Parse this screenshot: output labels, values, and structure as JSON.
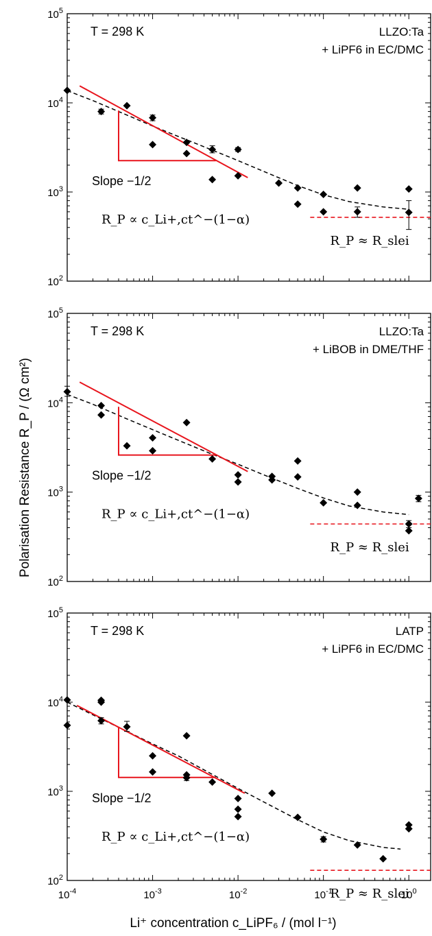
{
  "figure": {
    "ylabel": "Polarisation Resistance R_P / (Ω cm²)",
    "xlabel": "Li⁺ concentration c_LiPF₆ / (mol l⁻¹)",
    "x_ticks": [
      "10^-4",
      "10^-3",
      "10^-2",
      "10^-1",
      "10^0"
    ],
    "y_ticks": [
      "10^2",
      "10^3",
      "10^4",
      "10^5"
    ],
    "annotations": {
      "temperature": "T = 298 K",
      "slope": "Slope −1/2",
      "rp_proportional": "R_P ∝ c_Li+,ct^−(1−α)",
      "rp_approx": "R_P ≈ R_slei"
    },
    "colors": {
      "fit_line": "#000000",
      "slope_guide": "#e8141c",
      "slei_line": "#e8141c",
      "markers": "#000000"
    }
  },
  "chart_data": [
    {
      "type": "scatter",
      "title_line1": "LLZO:Ta",
      "title_line2": "+ LiPF6 in EC/DMC",
      "xscale": "log",
      "yscale": "log",
      "xlim": [
        0.0001,
        1.8
      ],
      "ylim": [
        100,
        100000
      ],
      "points": [
        [
          0.0001,
          13800
        ],
        [
          0.00025,
          8000
        ],
        [
          0.0005,
          9300
        ],
        [
          0.001,
          6800
        ],
        [
          0.001,
          3400
        ],
        [
          0.0025,
          3600
        ],
        [
          0.0025,
          2700
        ],
        [
          0.005,
          3000
        ],
        [
          0.005,
          1380
        ],
        [
          0.01,
          3000
        ],
        [
          0.01,
          1520
        ],
        [
          0.03,
          1260
        ],
        [
          0.05,
          1110
        ],
        [
          0.05,
          730
        ],
        [
          0.1,
          940
        ],
        [
          0.1,
          600
        ],
        [
          0.25,
          1110
        ],
        [
          0.25,
          600
        ],
        [
          1.0,
          1080
        ],
        [
          1.0,
          590
        ]
      ],
      "error_bars": [
        [
          0.00025,
          8000,
          7500,
          8500
        ],
        [
          0.001,
          6800,
          6300,
          7300
        ],
        [
          0.005,
          3000,
          2750,
          3300
        ],
        [
          0.01,
          3000,
          2850,
          3150
        ],
        [
          0.25,
          600,
          520,
          680
        ],
        [
          1.0,
          590,
          380,
          800
        ]
      ],
      "fit_curve": {
        "x": [
          0.0001,
          0.0002,
          0.0005,
          0.001,
          0.002,
          0.005,
          0.01,
          0.02,
          0.05,
          0.1,
          0.2,
          0.5,
          1.0
        ],
        "y": [
          13700,
          10600,
          7300,
          5500,
          4200,
          2950,
          2250,
          1700,
          1180,
          930,
          780,
          680,
          640
        ]
      },
      "slope_line": {
        "x": [
          0.00014,
          0.013
        ],
        "y": [
          15500,
          1450
        ]
      },
      "slope_triangle": {
        "x": [
          0.0004,
          0.0004,
          0.0055
        ],
        "y": [
          8200,
          2250,
          2250
        ]
      },
      "slei_level": {
        "x": [
          0.07,
          1.8
        ],
        "y": 520
      }
    },
    {
      "type": "scatter",
      "title_line1": "LLZO:Ta",
      "title_line2": "+ LiBOB in DME/THF",
      "xscale": "log",
      "yscale": "log",
      "xlim": [
        0.0001,
        1.8
      ],
      "ylim": [
        100,
        100000
      ],
      "points": [
        [
          0.0001,
          13300
        ],
        [
          0.00025,
          9300
        ],
        [
          0.00025,
          7300
        ],
        [
          0.0005,
          3300
        ],
        [
          0.001,
          4050
        ],
        [
          0.001,
          2900
        ],
        [
          0.0025,
          6000
        ],
        [
          0.005,
          2350
        ],
        [
          0.01,
          1560
        ],
        [
          0.01,
          1300
        ],
        [
          0.025,
          1500
        ],
        [
          0.025,
          1370
        ],
        [
          0.05,
          2230
        ],
        [
          0.05,
          1480
        ],
        [
          0.1,
          760
        ],
        [
          0.25,
          1000
        ],
        [
          0.25,
          710
        ],
        [
          1.0,
          440
        ],
        [
          1.0,
          370
        ],
        [
          1.3,
          850
        ]
      ],
      "error_bars": [
        [
          0.0001,
          13300,
          11800,
          15300
        ],
        [
          1.3,
          850,
          780,
          920
        ],
        [
          1.0,
          440,
          400,
          480
        ]
      ],
      "fit_curve": {
        "x": [
          0.0001,
          0.0002,
          0.0005,
          0.001,
          0.002,
          0.005,
          0.01,
          0.02,
          0.05,
          0.1,
          0.2,
          0.5,
          1.0
        ],
        "y": [
          12400,
          9600,
          6600,
          5000,
          3800,
          2650,
          2050,
          1560,
          1100,
          860,
          700,
          600,
          560
        ]
      },
      "slope_line": {
        "x": [
          0.00014,
          0.013
        ],
        "y": [
          17000,
          1700
        ]
      },
      "slope_triangle": {
        "x": [
          0.0004,
          0.0004,
          0.0055
        ],
        "y": [
          9000,
          2600,
          2600
        ]
      },
      "slei_level": {
        "x": [
          0.07,
          1.8
        ],
        "y": 440
      }
    },
    {
      "type": "scatter",
      "title_line1": "LATP",
      "title_line2": "+ LiPF6 in EC/DMC",
      "xscale": "log",
      "yscale": "log",
      "xlim": [
        0.0001,
        1.8
      ],
      "ylim": [
        100,
        100000
      ],
      "points": [
        [
          0.0001,
          10600
        ],
        [
          0.0001,
          5500
        ],
        [
          0.00025,
          10500
        ],
        [
          0.00025,
          10000
        ],
        [
          0.00025,
          6200
        ],
        [
          0.0005,
          5300
        ],
        [
          0.001,
          2500
        ],
        [
          0.001,
          1650
        ],
        [
          0.0025,
          4200
        ],
        [
          0.0025,
          1530
        ],
        [
          0.0025,
          1420
        ],
        [
          0.005,
          1270
        ],
        [
          0.01,
          830
        ],
        [
          0.01,
          630
        ],
        [
          0.01,
          520
        ],
        [
          0.025,
          950
        ],
        [
          0.05,
          510
        ],
        [
          0.1,
          290
        ],
        [
          0.25,
          250
        ],
        [
          0.5,
          175
        ],
        [
          1.0,
          420
        ],
        [
          1.0,
          380
        ]
      ],
      "error_bars": [
        [
          0.0005,
          5300,
          4700,
          6100
        ],
        [
          0.0025,
          1420,
          1320,
          1530
        ],
        [
          0.1,
          290,
          270,
          310
        ],
        [
          0.00025,
          6200,
          5700,
          6700
        ]
      ],
      "fit_curve": {
        "x": [
          0.0001,
          0.0002,
          0.0005,
          0.001,
          0.002,
          0.005,
          0.01,
          0.02,
          0.05,
          0.1,
          0.2,
          0.5,
          0.8
        ],
        "y": [
          10000,
          7200,
          4700,
          3400,
          2500,
          1550,
          1080,
          760,
          480,
          350,
          280,
          235,
          225
        ]
      },
      "slope_line": {
        "x": [
          0.00013,
          0.012
        ],
        "y": [
          9200,
          950
        ]
      },
      "slope_triangle": {
        "x": [
          0.0004,
          0.0004,
          0.0055
        ],
        "y": [
          5300,
          1430,
          1430
        ]
      },
      "slei_level": {
        "x": [
          0.07,
          1.8
        ],
        "y": 130
      }
    }
  ]
}
